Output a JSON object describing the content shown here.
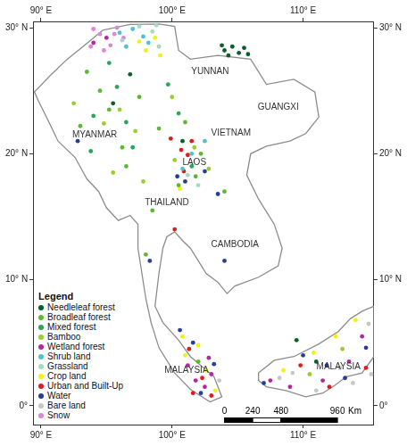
{
  "chart_data": {
    "type": "scatter",
    "xlim": [
      89.4,
      115.4
    ],
    "ylim": [
      -1.5,
      30.5
    ],
    "xticks": [
      {
        "value": 90,
        "label": "90° E"
      },
      {
        "value": 100,
        "label": "100° E"
      },
      {
        "value": 110,
        "label": "110° E"
      }
    ],
    "yticks": [
      {
        "value": 0,
        "label": "0°"
      },
      {
        "value": 10,
        "label": "10° N"
      },
      {
        "value": 20,
        "label": "20° N"
      },
      {
        "value": 30,
        "label": "30° N"
      }
    ],
    "grid": false,
    "legend": "lower left",
    "legend_title": "Legend",
    "marker": "circle",
    "series": [
      {
        "name": "Needleleaf forest",
        "color": "#0b5d2a",
        "values": [
          [
            104.0,
            28.2
          ],
          [
            104.6,
            28.5
          ],
          [
            105.1,
            28.0
          ],
          [
            105.5,
            28.4
          ],
          [
            104.3,
            27.8
          ],
          [
            105.8,
            27.9
          ],
          [
            103.8,
            28.6
          ],
          [
            96.8,
            26.3
          ],
          [
            95.5,
            24.0
          ],
          [
            100.8,
            21.0
          ],
          [
            109.5,
            5.2
          ],
          [
            111.0,
            3.5
          ]
        ]
      },
      {
        "name": "Broadleaf forest",
        "color": "#5cb82e",
        "values": [
          [
            93.5,
            26.5
          ],
          [
            94.5,
            25.0
          ],
          [
            95.2,
            23.5
          ],
          [
            96.2,
            20.5
          ],
          [
            93.0,
            22.2
          ],
          [
            97.5,
            24.5
          ],
          [
            99.0,
            22.0
          ],
          [
            101.0,
            22.5
          ],
          [
            102.2,
            20.0
          ],
          [
            101.8,
            18.2
          ],
          [
            100.5,
            17.5
          ],
          [
            96.5,
            19.0
          ],
          [
            98.5,
            15.5
          ],
          [
            104.0,
            17.0
          ],
          [
            98.0,
            12.0
          ],
          [
            102.0,
            3.5
          ]
        ]
      },
      {
        "name": "Mixed forest",
        "color": "#2aa55a",
        "values": [
          [
            94.0,
            23.0
          ],
          [
            95.8,
            25.3
          ],
          [
            96.5,
            22.5
          ],
          [
            97.0,
            20.5
          ],
          [
            93.8,
            20.2
          ],
          [
            99.7,
            25.5
          ],
          [
            100.5,
            23.2
          ],
          [
            101.5,
            19.0
          ],
          [
            95.2,
            27.2
          ]
        ]
      },
      {
        "name": "Bamboo",
        "color": "#9acd32",
        "values": [
          [
            92.5,
            24.0
          ],
          [
            94.8,
            22.4
          ],
          [
            96.0,
            23.5
          ],
          [
            97.2,
            21.8
          ],
          [
            95.5,
            18.5
          ],
          [
            100.0,
            24.5
          ],
          [
            101.7,
            20.5
          ],
          [
            102.8,
            18.8
          ],
          [
            100.2,
            19.5
          ],
          [
            97.8,
            17.8
          ],
          [
            110.5,
            2.5
          ],
          [
            113.0,
            4.5
          ]
        ]
      },
      {
        "name": "Wetland forest",
        "color": "#b5279e",
        "values": [
          [
            101.8,
            2.0
          ],
          [
            102.5,
            1.5
          ],
          [
            103.0,
            2.5
          ],
          [
            101.2,
            3.2
          ],
          [
            102.8,
            3.8
          ],
          [
            107.5,
            2.0
          ],
          [
            109.0,
            1.5
          ],
          [
            111.5,
            2.0
          ],
          [
            113.5,
            3.5
          ],
          [
            114.5,
            5.5
          ],
          [
            94.0,
            28.8
          ],
          [
            95.0,
            29.2
          ]
        ]
      },
      {
        "name": "Shrub land",
        "color": "#4fc3c9",
        "values": [
          [
            96.0,
            29.6
          ],
          [
            97.0,
            29.9
          ],
          [
            97.8,
            29.3
          ],
          [
            96.5,
            28.5
          ],
          [
            98.2,
            28.8
          ],
          [
            101.5,
            20.0
          ],
          [
            102.5,
            21.0
          ],
          [
            100.8,
            18.8
          ]
        ]
      },
      {
        "name": "Grassland",
        "color": "#a6d8c6",
        "values": [
          [
            97.5,
            30.1
          ],
          [
            98.5,
            29.7
          ],
          [
            99.0,
            28.5
          ],
          [
            96.2,
            29.0
          ],
          [
            98.8,
            30.2
          ],
          [
            101.2,
            18.3
          ],
          [
            102.0,
            17.5
          ]
        ]
      },
      {
        "name": "Crop land",
        "color": "#f2f20a",
        "values": [
          [
            98.0,
            28.2
          ],
          [
            98.7,
            29.2
          ],
          [
            99.1,
            27.8
          ],
          [
            97.5,
            28.9
          ],
          [
            101.0,
            4.0
          ],
          [
            102.0,
            4.8
          ],
          [
            100.8,
            5.5
          ],
          [
            102.6,
            2.8
          ],
          [
            103.3,
            1.2
          ],
          [
            108.5,
            2.8
          ],
          [
            110.8,
            4.2
          ],
          [
            112.5,
            5.5
          ],
          [
            114.0,
            6.8
          ],
          [
            100.6,
            17.2
          ]
        ]
      },
      {
        "name": "Urban and Built-Up",
        "color": "#e31a1c",
        "values": [
          [
            100.7,
            20.3
          ],
          [
            101.2,
            19.9
          ],
          [
            100.9,
            18.6
          ],
          [
            101.5,
            21.0
          ],
          [
            99.9,
            21.2
          ],
          [
            101.3,
            4.5
          ],
          [
            102.3,
            2.2
          ],
          [
            101.6,
            1.0
          ],
          [
            103.0,
            0.8
          ],
          [
            109.8,
            3.2
          ],
          [
            112.0,
            1.5
          ],
          [
            114.8,
            3.0
          ],
          [
            100.2,
            14.0
          ]
        ]
      },
      {
        "name": "Water",
        "color": "#263c9e",
        "values": [
          [
            101.0,
            17.8
          ],
          [
            102.5,
            18.6
          ],
          [
            100.4,
            18.2
          ],
          [
            103.5,
            16.8
          ],
          [
            101.6,
            5.0
          ],
          [
            100.6,
            6.0
          ],
          [
            103.2,
            3.3
          ],
          [
            102.2,
            1.0
          ],
          [
            107.0,
            1.8
          ],
          [
            110.0,
            4.0
          ],
          [
            111.8,
            3.2
          ],
          [
            113.2,
            2.2
          ],
          [
            114.8,
            4.6
          ],
          [
            104.0,
            11.5
          ],
          [
            98.3,
            11.5
          ],
          [
            92.8,
            21.0
          ]
        ]
      },
      {
        "name": "Bare land",
        "color": "#c7c7c7",
        "values": [
          [
            108.2,
            2.2
          ],
          [
            109.2,
            2.6
          ],
          [
            111.0,
            1.2
          ],
          [
            112.8,
            3.0
          ],
          [
            113.8,
            1.8
          ],
          [
            115.0,
            6.5
          ],
          [
            115.2,
            2.5
          ],
          [
            103.6,
            2.0
          ]
        ]
      },
      {
        "name": "Snow",
        "color": "#d987d9",
        "values": [
          [
            94.5,
            29.5
          ],
          [
            95.3,
            28.6
          ],
          [
            94.0,
            29.9
          ],
          [
            95.8,
            30.0
          ],
          [
            96.3,
            29.2
          ],
          [
            94.8,
            28.2
          ],
          [
            95.6,
            29.5
          ],
          [
            93.8,
            28.5
          ]
        ]
      }
    ],
    "boundaries": {
      "color": "#8c8c8c",
      "lines": [
        [
          [
            94.7,
            29.8
          ],
          [
            96.8,
            30.26
          ],
          [
            99.0,
            30.3
          ],
          [
            100.2,
            30.1
          ],
          [
            100.5,
            28.2
          ],
          [
            101.4,
            27.5
          ],
          [
            103.5,
            27.8
          ],
          [
            106.0,
            27.5
          ],
          [
            107.2,
            25.5
          ],
          [
            109.3,
            25.9
          ],
          [
            110.9,
            24.9
          ],
          [
            111.2,
            22.9
          ],
          [
            110.2,
            21.6
          ],
          [
            109.0,
            21.0
          ],
          [
            107.2,
            20.6
          ],
          [
            106.0,
            20.0
          ],
          [
            105.7,
            18.3
          ],
          [
            106.6,
            16.4
          ],
          [
            107.8,
            14.4
          ],
          [
            108.4,
            12.5
          ],
          [
            108.1,
            11.1
          ],
          [
            106.6,
            10.2
          ],
          [
            104.8,
            9.5
          ],
          [
            104.2,
            8.9
          ],
          [
            103.5,
            9.8
          ],
          [
            102.6,
            10.5
          ],
          [
            102.0,
            11.5
          ],
          [
            101.4,
            12.5
          ],
          [
            100.8,
            13.1
          ],
          [
            100.2,
            13.8
          ],
          [
            99.6,
            13.4
          ],
          [
            99.3,
            12.5
          ],
          [
            99.0,
            10.5
          ],
          [
            98.7,
            7.9
          ],
          [
            99.3,
            6.6
          ],
          [
            100.5,
            5.2
          ],
          [
            101.4,
            3.9
          ],
          [
            103.2,
            2.3
          ],
          [
            103.8,
            0.7
          ],
          [
            102.9,
            0.3
          ],
          [
            101.4,
            1.3
          ],
          [
            100.2,
            2.6
          ],
          [
            99.0,
            4.6
          ],
          [
            98.4,
            6.6
          ],
          [
            98.0,
            8.5
          ],
          [
            97.7,
            10.5
          ],
          [
            97.4,
            12.5
          ],
          [
            97.4,
            14.4
          ],
          [
            96.8,
            15.1
          ],
          [
            95.9,
            14.7
          ],
          [
            95.0,
            15.7
          ],
          [
            94.4,
            17.0
          ],
          [
            93.5,
            18.0
          ],
          [
            92.6,
            19.7
          ],
          [
            91.3,
            21.0
          ],
          [
            90.7,
            22.3
          ],
          [
            89.8,
            24.2
          ],
          [
            89.5,
            24.9
          ],
          [
            90.7,
            26.2
          ],
          [
            92.0,
            27.5
          ],
          [
            93.2,
            28.5
          ]
        ],
        [
          [
            106.6,
            2.6
          ],
          [
            107.8,
            3.6
          ],
          [
            109.3,
            3.9
          ],
          [
            111.2,
            4.9
          ],
          [
            112.7,
            5.9
          ],
          [
            113.6,
            6.9
          ],
          [
            114.5,
            7.5
          ],
          [
            115.4,
            7.9
          ],
          [
            115.4,
            3.9
          ],
          [
            114.5,
            2.6
          ],
          [
            113.3,
            2.3
          ],
          [
            112.4,
            1.6
          ],
          [
            111.5,
            1.0
          ],
          [
            110.2,
            0.7
          ],
          [
            108.7,
            1.2
          ],
          [
            107.2,
            1.5
          ],
          [
            106.6,
            2.0
          ]
        ]
      ]
    },
    "annotations": [
      {
        "text": "YUNNAN",
        "x": 102.9,
        "y": 26.5
      },
      {
        "text": "GUANGXI",
        "x": 108.1,
        "y": 23.7
      },
      {
        "text": "MYANMAR",
        "x": 94.1,
        "y": 21.5
      },
      {
        "text": "VIETNAM",
        "x": 104.5,
        "y": 21.6
      },
      {
        "text": "LAOS",
        "x": 101.7,
        "y": 19.3
      },
      {
        "text": "THAILAND",
        "x": 99.6,
        "y": 16.1
      },
      {
        "text": "CAMBODIA",
        "x": 104.8,
        "y": 12.8
      },
      {
        "text": "MALAYSIA",
        "x": 101.1,
        "y": 2.8
      },
      {
        "text": "MALAYSIA",
        "x": 112.7,
        "y": 3.1
      }
    ],
    "scale_bar": {
      "ticks": [
        0,
        240,
        480,
        960
      ],
      "unit": "Km"
    }
  }
}
